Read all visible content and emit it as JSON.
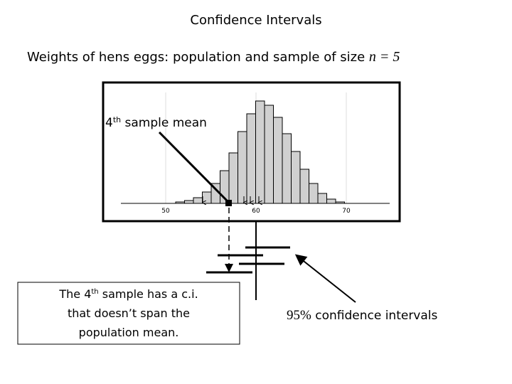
{
  "title": "Confidence Intervals",
  "subtitle": {
    "text": "Weights of hens eggs: population and sample of size ",
    "formula": "n = 5"
  },
  "axis_labels": [
    "50",
    "60",
    "70"
  ],
  "annotation": {
    "number": "4",
    "suffix": "th",
    "rest": " sample mean"
  },
  "note": {
    "line1_start": "The 4",
    "line1_suffix": "th",
    "line1_end": " sample has a c.i.",
    "line2": "that doesn’t span the",
    "line3": "population mean."
  },
  "ci_label": {
    "percent": "95%",
    "rest": " confidence intervals"
  }
}
